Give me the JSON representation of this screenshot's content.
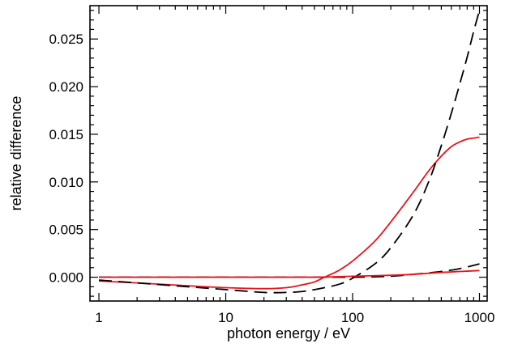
{
  "chart_data": {
    "type": "line",
    "xlabel": "photon energy / eV",
    "ylabel": "relative difference",
    "xscale": "log",
    "xlim": [
      0.85,
      1150
    ],
    "ylim": [
      -0.0025,
      0.0285
    ],
    "xticks": [
      1,
      10,
      100,
      1000
    ],
    "xtick_labels": [
      "1",
      "10",
      "100",
      "1000"
    ],
    "yticks": [
      0,
      0.005,
      0.01,
      0.015,
      0.02,
      0.025
    ],
    "ytick_labels": [
      "0.000",
      "0.005",
      "0.010",
      "0.015",
      "0.020",
      "0.025"
    ],
    "grid": false,
    "legend": "none",
    "series": [
      {
        "color": "#e8141b",
        "style": "solid",
        "x": [
          1,
          2,
          5,
          10,
          20,
          30,
          40,
          50,
          60,
          70,
          80,
          100,
          150,
          200,
          300,
          400,
          500,
          600,
          700,
          800,
          900,
          1000
        ],
        "y": [
          -0.0004,
          -0.0006,
          -0.0009,
          -0.0011,
          -0.0012,
          -0.0011,
          -0.0008,
          -0.0005,
          0.0,
          0.0004,
          0.0008,
          0.0017,
          0.0038,
          0.0058,
          0.0089,
          0.0112,
          0.0127,
          0.0137,
          0.0142,
          0.0145,
          0.0146,
          0.0147
        ]
      },
      {
        "color": "#000000",
        "style": "dashed",
        "x": [
          1,
          2,
          5,
          10,
          20,
          30,
          40,
          50,
          60,
          80,
          100,
          150,
          200,
          300,
          400,
          500,
          600,
          700,
          800,
          900,
          1000
        ],
        "y": [
          -0.0003,
          -0.0006,
          -0.001,
          -0.0013,
          -0.0016,
          -0.0016,
          -0.0015,
          -0.0013,
          -0.0011,
          -0.0007,
          -0.0001,
          0.0014,
          0.0031,
          0.0065,
          0.0101,
          0.0138,
          0.0172,
          0.0203,
          0.0231,
          0.0258,
          0.028
        ]
      },
      {
        "color": "#000000",
        "style": "dashed",
        "x": [
          1,
          10,
          50,
          100,
          200,
          300,
          500,
          700,
          1000
        ],
        "y": [
          0.0,
          0.0,
          0.0,
          0.0,
          0.0001,
          0.0003,
          0.0006,
          0.0009,
          0.0014
        ]
      },
      {
        "color": "#e8141b",
        "style": "solid",
        "x": [
          1,
          10,
          50,
          100,
          200,
          300,
          500,
          700,
          1000
        ],
        "y": [
          0.0,
          0.0,
          0.0,
          0.0001,
          0.0002,
          0.0003,
          0.0005,
          0.0006,
          0.0007
        ]
      }
    ]
  }
}
